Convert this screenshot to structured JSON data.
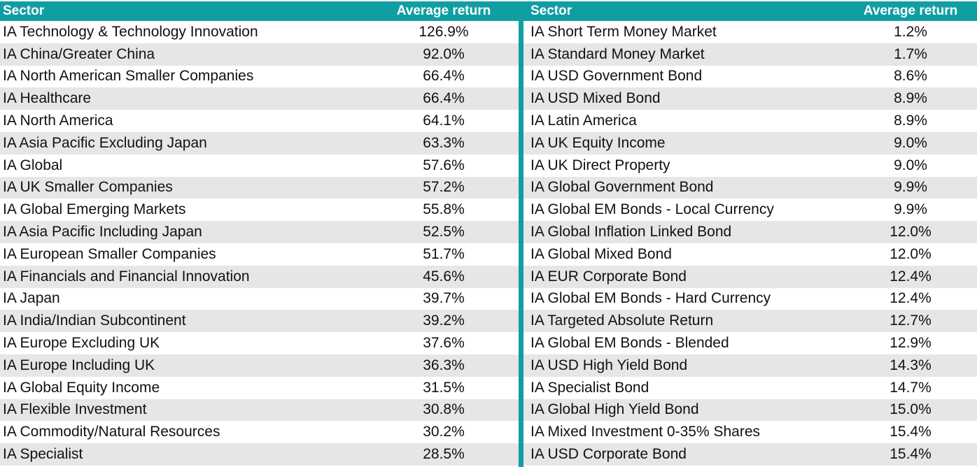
{
  "chart_data": {
    "type": "table",
    "tables": [
      {
        "columns": [
          "Sector",
          "Average return"
        ],
        "rows": [
          [
            "IA Technology & Technology Innovation",
            "126.9%"
          ],
          [
            "IA China/Greater China",
            "92.0%"
          ],
          [
            "IA North American Smaller Companies",
            "66.4%"
          ],
          [
            "IA Healthcare",
            "66.4%"
          ],
          [
            "IA North America",
            "64.1%"
          ],
          [
            "IA Asia Pacific Excluding Japan",
            "63.3%"
          ],
          [
            "IA Global",
            "57.6%"
          ],
          [
            "IA UK Smaller Companies",
            "57.2%"
          ],
          [
            "IA Global Emerging Markets",
            "55.8%"
          ],
          [
            "IA Asia Pacific Including Japan",
            "52.5%"
          ],
          [
            "IA European Smaller Companies",
            "51.7%"
          ],
          [
            "IA Financials and Financial Innovation",
            "45.6%"
          ],
          [
            "IA Japan",
            "39.7%"
          ],
          [
            "IA India/Indian Subcontinent",
            "39.2%"
          ],
          [
            "IA Europe Excluding UK",
            "37.6%"
          ],
          [
            "IA Europe Including UK",
            "36.3%"
          ],
          [
            "IA Global Equity Income",
            "31.5%"
          ],
          [
            "IA Flexible Investment",
            "30.8%"
          ],
          [
            "IA Commodity/Natural Resources",
            "30.2%"
          ],
          [
            "IA Specialist",
            "28.5%"
          ]
        ]
      },
      {
        "columns": [
          "Sector",
          "Average return"
        ],
        "rows": [
          [
            "IA Short Term Money Market",
            "1.2%"
          ],
          [
            "IA Standard Money Market",
            "1.7%"
          ],
          [
            "IA USD Government Bond",
            "8.6%"
          ],
          [
            "IA USD Mixed Bond",
            "8.9%"
          ],
          [
            "IA Latin America",
            "8.9%"
          ],
          [
            "IA UK Equity Income",
            "9.0%"
          ],
          [
            "IA UK Direct Property",
            "9.0%"
          ],
          [
            "IA Global Government Bond",
            "9.9%"
          ],
          [
            "IA Global EM Bonds - Local Currency",
            "9.9%"
          ],
          [
            "IA Global Inflation Linked Bond",
            "12.0%"
          ],
          [
            "IA Global Mixed Bond",
            "12.0%"
          ],
          [
            "IA EUR Corporate Bond",
            "12.4%"
          ],
          [
            "IA Global EM Bonds - Hard Currency",
            "12.4%"
          ],
          [
            "IA Targeted Absolute Return",
            "12.7%"
          ],
          [
            "IA Global EM Bonds - Blended",
            "12.9%"
          ],
          [
            "IA USD High Yield Bond",
            "14.3%"
          ],
          [
            "IA Specialist Bond",
            "14.7%"
          ],
          [
            "IA Global High Yield Bond",
            "15.0%"
          ],
          [
            "IA Mixed Investment 0-35% Shares",
            "15.4%"
          ],
          [
            "IA USD Corporate Bond",
            "15.4%"
          ]
        ]
      }
    ],
    "colors": {
      "header_bg": "#119ea3",
      "header_text": "#ffffff",
      "row_alt": "#e6e6e6"
    }
  }
}
